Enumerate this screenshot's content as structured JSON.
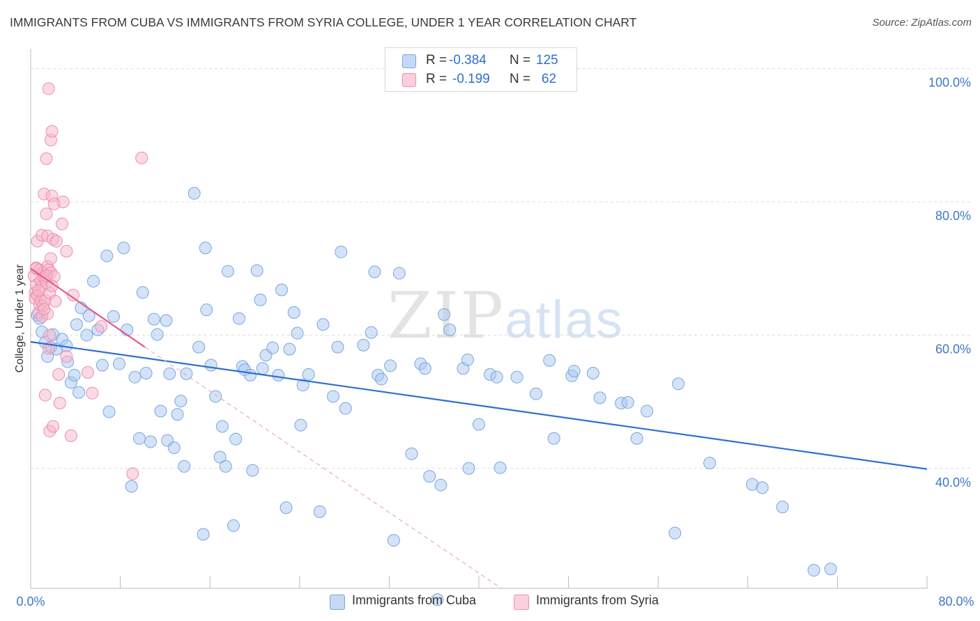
{
  "header": {
    "title": "IMMIGRANTS FROM CUBA VS IMMIGRANTS FROM SYRIA COLLEGE, UNDER 1 YEAR CORRELATION CHART",
    "source": "Source: ZipAtlas.com"
  },
  "watermark": {
    "zip": "ZIP",
    "atlas": "atlas"
  },
  "legend": {
    "rows": [
      {
        "r_label": "R = ",
        "r_value": "-0.384",
        "n_label": "N = ",
        "n_value": "125",
        "color": "#a9c7ef"
      },
      {
        "r_label": "R = ",
        "r_value": "-0.199",
        "n_label": "N = ",
        "n_value": "62",
        "color": "#f5b6c9"
      }
    ]
  },
  "chart_data": {
    "type": "scatter",
    "title": "IMMIGRANTS FROM CUBA VS IMMIGRANTS FROM SYRIA COLLEGE, UNDER 1 YEAR CORRELATION CHART",
    "xlabel": "",
    "ylabel": "College, Under 1 year",
    "xlim": [
      0,
      80
    ],
    "ylim": [
      22,
      103
    ],
    "x_tick_labels": [
      "0.0%",
      "80.0%"
    ],
    "y_ticks": [
      40,
      60,
      80,
      100
    ],
    "y_tick_labels": [
      "40.0%",
      "60.0%",
      "80.0%",
      "100.0%"
    ],
    "grid": true,
    "legend_position": "bottom",
    "series": [
      {
        "name": "Immigrants from Cuba",
        "color": "#a9c7ef",
        "stroke": "#7aa6e0",
        "trend": {
          "x": [
            0,
            80
          ],
          "y": [
            59.0,
            39.9
          ],
          "color": "#2f6fd0"
        },
        "points": [
          [
            0.6,
            63.0
          ],
          [
            0.8,
            62.5
          ],
          [
            1.0,
            60.5
          ],
          [
            1.3,
            58.9
          ],
          [
            1.5,
            56.8
          ],
          [
            1.8,
            58.2
          ],
          [
            2.0,
            60.1
          ],
          [
            2.3,
            57.9
          ],
          [
            2.8,
            59.4
          ],
          [
            3.2,
            58.4
          ],
          [
            3.3,
            56.0
          ],
          [
            3.6,
            52.9
          ],
          [
            3.9,
            54.0
          ],
          [
            4.1,
            61.6
          ],
          [
            4.3,
            51.4
          ],
          [
            4.5,
            64.1
          ],
          [
            5.0,
            60.0
          ],
          [
            5.2,
            62.9
          ],
          [
            5.6,
            68.1
          ],
          [
            6.0,
            60.8
          ],
          [
            6.4,
            55.5
          ],
          [
            6.8,
            71.9
          ],
          [
            7.0,
            48.5
          ],
          [
            7.4,
            62.8
          ],
          [
            7.9,
            55.7
          ],
          [
            8.3,
            73.1
          ],
          [
            8.6,
            60.8
          ],
          [
            9.0,
            37.3
          ],
          [
            9.3,
            53.7
          ],
          [
            9.7,
            44.5
          ],
          [
            10.0,
            66.4
          ],
          [
            10.3,
            54.3
          ],
          [
            10.7,
            44.0
          ],
          [
            11.0,
            62.4
          ],
          [
            11.3,
            60.1
          ],
          [
            11.6,
            48.6
          ],
          [
            12.1,
            62.2
          ],
          [
            12.2,
            44.2
          ],
          [
            12.4,
            54.2
          ],
          [
            12.8,
            43.1
          ],
          [
            13.1,
            48.1
          ],
          [
            13.4,
            50.1
          ],
          [
            13.7,
            40.3
          ],
          [
            13.9,
            54.2
          ],
          [
            14.6,
            81.3
          ],
          [
            15.0,
            58.2
          ],
          [
            15.4,
            30.1
          ],
          [
            15.6,
            73.1
          ],
          [
            15.7,
            63.8
          ],
          [
            16.1,
            55.5
          ],
          [
            16.5,
            50.8
          ],
          [
            16.9,
            41.7
          ],
          [
            17.1,
            46.3
          ],
          [
            17.4,
            40.3
          ],
          [
            17.6,
            69.6
          ],
          [
            18.1,
            31.4
          ],
          [
            18.3,
            44.4
          ],
          [
            18.6,
            62.5
          ],
          [
            18.9,
            55.3
          ],
          [
            19.1,
            54.8
          ],
          [
            19.6,
            54.0
          ],
          [
            19.8,
            39.7
          ],
          [
            20.2,
            69.7
          ],
          [
            20.5,
            65.3
          ],
          [
            20.7,
            55.0
          ],
          [
            21.0,
            57.0
          ],
          [
            21.6,
            58.1
          ],
          [
            22.1,
            54.0
          ],
          [
            22.4,
            66.8
          ],
          [
            22.8,
            34.1
          ],
          [
            23.1,
            57.9
          ],
          [
            23.5,
            63.4
          ],
          [
            23.8,
            60.3
          ],
          [
            24.1,
            46.5
          ],
          [
            24.3,
            52.5
          ],
          [
            24.8,
            54.1
          ],
          [
            25.8,
            33.5
          ],
          [
            26.1,
            61.6
          ],
          [
            27.0,
            50.8
          ],
          [
            27.4,
            58.2
          ],
          [
            27.7,
            72.5
          ],
          [
            28.1,
            49.0
          ],
          [
            29.7,
            58.5
          ],
          [
            30.4,
            60.4
          ],
          [
            30.7,
            69.5
          ],
          [
            31.0,
            54.0
          ],
          [
            31.3,
            53.4
          ],
          [
            32.1,
            55.4
          ],
          [
            32.4,
            29.2
          ],
          [
            32.9,
            69.3
          ],
          [
            34.0,
            42.2
          ],
          [
            34.8,
            55.7
          ],
          [
            35.2,
            55.0
          ],
          [
            35.6,
            38.8
          ],
          [
            36.3,
            20.3
          ],
          [
            36.6,
            37.5
          ],
          [
            36.9,
            63.1
          ],
          [
            37.4,
            60.8
          ],
          [
            38.6,
            55.0
          ],
          [
            39.0,
            56.3
          ],
          [
            39.1,
            40.0
          ],
          [
            40.0,
            46.6
          ],
          [
            41.0,
            54.1
          ],
          [
            41.6,
            53.7
          ],
          [
            41.9,
            40.1
          ],
          [
            43.4,
            53.7
          ],
          [
            45.1,
            51.2
          ],
          [
            46.3,
            56.2
          ],
          [
            46.7,
            44.5
          ],
          [
            48.3,
            53.9
          ],
          [
            48.5,
            54.6
          ],
          [
            50.2,
            54.3
          ],
          [
            50.8,
            50.6
          ],
          [
            52.7,
            49.8
          ],
          [
            53.3,
            49.9
          ],
          [
            54.1,
            44.5
          ],
          [
            55.0,
            48.6
          ],
          [
            57.5,
            30.3
          ],
          [
            57.8,
            52.7
          ],
          [
            60.6,
            40.8
          ],
          [
            64.4,
            37.6
          ],
          [
            65.3,
            37.1
          ],
          [
            67.1,
            34.2
          ],
          [
            69.9,
            24.7
          ],
          [
            71.4,
            24.9
          ]
        ]
      },
      {
        "name": "Immigrants from Syria",
        "color": "#f5b6c9",
        "stroke": "#ec8fad",
        "trend": {
          "x": [
            0,
            10.2
          ],
          "y": [
            70.0,
            58.2
          ],
          "color": "#e05a88",
          "dashed_extension_to": [
            42,
            22
          ]
        },
        "points": [
          [
            0.3,
            68.9
          ],
          [
            0.4,
            66.4
          ],
          [
            0.4,
            65.5
          ],
          [
            0.5,
            70.1
          ],
          [
            0.5,
            67.5
          ],
          [
            0.6,
            74.1
          ],
          [
            0.6,
            66.0
          ],
          [
            0.7,
            63.4
          ],
          [
            0.8,
            69.8
          ],
          [
            0.8,
            64.6
          ],
          [
            0.9,
            68.1
          ],
          [
            0.9,
            65.2
          ],
          [
            1.0,
            75.0
          ],
          [
            1.0,
            67.3
          ],
          [
            1.1,
            69.4
          ],
          [
            1.1,
            64.4
          ],
          [
            1.2,
            81.2
          ],
          [
            1.2,
            68.6
          ],
          [
            1.3,
            51.0
          ],
          [
            1.3,
            65.2
          ],
          [
            1.4,
            86.5
          ],
          [
            1.4,
            78.2
          ],
          [
            1.4,
            67.9
          ],
          [
            1.5,
            74.9
          ],
          [
            1.5,
            70.3
          ],
          [
            1.5,
            63.2
          ],
          [
            1.6,
            97.0
          ],
          [
            1.6,
            69.8
          ],
          [
            1.6,
            58.0
          ],
          [
            1.7,
            66.3
          ],
          [
            1.7,
            45.6
          ],
          [
            1.8,
            89.3
          ],
          [
            1.8,
            71.5
          ],
          [
            1.8,
            69.4
          ],
          [
            1.9,
            90.6
          ],
          [
            1.9,
            80.9
          ],
          [
            2.0,
            74.4
          ],
          [
            2.0,
            46.3
          ],
          [
            2.1,
            79.7
          ],
          [
            2.1,
            68.8
          ],
          [
            2.2,
            65.1
          ],
          [
            2.3,
            74.1
          ],
          [
            2.5,
            54.1
          ],
          [
            2.6,
            49.8
          ],
          [
            2.8,
            76.7
          ],
          [
            2.9,
            80.0
          ],
          [
            3.2,
            56.8
          ],
          [
            3.2,
            72.6
          ],
          [
            3.6,
            44.9
          ],
          [
            3.8,
            66.0
          ],
          [
            5.1,
            54.4
          ],
          [
            5.5,
            51.3
          ],
          [
            6.3,
            61.3
          ],
          [
            9.1,
            39.2
          ],
          [
            9.9,
            86.6
          ],
          [
            0.5,
            70.0
          ],
          [
            0.7,
            66.7
          ],
          [
            1.0,
            62.8
          ],
          [
            1.2,
            63.9
          ],
          [
            1.4,
            68.9
          ],
          [
            1.7,
            60.0
          ],
          [
            1.9,
            67.4
          ]
        ]
      }
    ]
  }
}
